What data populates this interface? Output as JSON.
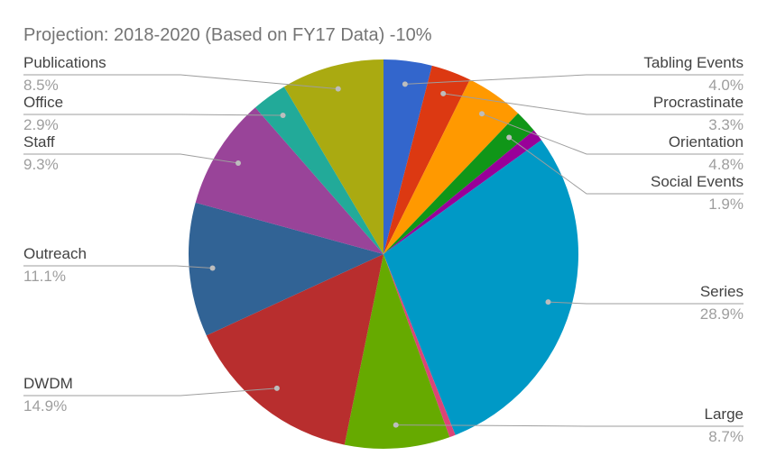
{
  "chart_data": {
    "type": "pie",
    "title": "Projection: 2018-2020 (Based on FY17 Data) -10%",
    "start_angle_deg": 0,
    "direction": "clockwise",
    "legend": "none",
    "slices": [
      {
        "name": "Tabling Events",
        "label": "4.0%",
        "value": 4.0,
        "color": "#3366cc"
      },
      {
        "name": "Procrastinate",
        "label": "3.3%",
        "value": 3.3,
        "color": "#dc3912"
      },
      {
        "name": "Orientation",
        "label": "4.8%",
        "value": 4.8,
        "color": "#ff9900"
      },
      {
        "name": "Social Events",
        "label": "1.9%",
        "value": 1.9,
        "color": "#109618"
      },
      {
        "name": "",
        "label": "",
        "value": 1.0,
        "color": "#990099"
      },
      {
        "name": "Series",
        "label": "28.9%",
        "value": 28.9,
        "color": "#0099c6"
      },
      {
        "name": "",
        "label": "",
        "value": 0.5,
        "color": "#dd4477"
      },
      {
        "name": "Large",
        "label": "8.7%",
        "value": 8.7,
        "color": "#66aa00"
      },
      {
        "name": "DWDM",
        "label": "14.9%",
        "value": 14.9,
        "color": "#b82e2e"
      },
      {
        "name": "Outreach",
        "label": "11.1%",
        "value": 11.1,
        "color": "#316395"
      },
      {
        "name": "Staff",
        "label": "9.3%",
        "value": 9.3,
        "color": "#994499"
      },
      {
        "name": "Office",
        "label": "2.9%",
        "value": 2.9,
        "color": "#22aa99"
      },
      {
        "name": "Publications",
        "label": "8.5%",
        "value": 8.5,
        "color": "#aaaa11"
      }
    ]
  }
}
